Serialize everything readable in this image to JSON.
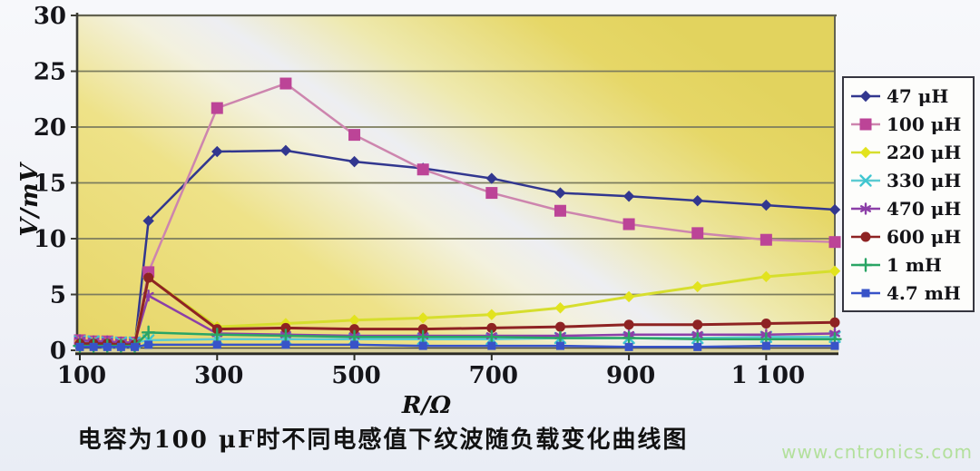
{
  "caption": "电容为100 μF时不同电感值下纹波随负载变化曲线图",
  "watermark": "www.cntronics.com",
  "colors": {
    "plot_yellow": "#e6d767",
    "plot_sheen": "#edeef2",
    "gridline": "#7d7d5e",
    "axis_dark": "#2a2a24",
    "axis_band_fill": "#d9d19e",
    "tick_text": "#15151a",
    "legend_border": "#35353f",
    "watermark_green": "#b3e09c"
  },
  "chart_data": {
    "type": "line",
    "title": "电容为100 μF时不同电感值下纹波随负载变化曲线图",
    "xlabel": "R/Ω",
    "ylabel": "V/mV",
    "xlim": [
      100,
      1200
    ],
    "ylim": [
      0,
      30
    ],
    "grid": "horizontal",
    "legend_position": "right",
    "y_ticks": [
      "0",
      "5",
      "10",
      "15",
      "20",
      "25",
      "30"
    ],
    "y_tick_values": [
      0,
      5,
      10,
      15,
      20,
      25,
      30
    ],
    "x_ticks": [
      "100",
      "300",
      "500",
      "700",
      "900",
      "1 100"
    ],
    "x_tick_values": [
      100,
      300,
      500,
      700,
      900,
      1100
    ],
    "x": [
      100,
      120,
      140,
      160,
      180,
      200,
      300,
      400,
      500,
      600,
      700,
      800,
      900,
      1000,
      1100,
      1200
    ],
    "series": [
      {
        "name": "47 μH",
        "marker": "diamond",
        "color": "#32378f",
        "line_color": "#32378f",
        "values": [
          0.5,
          0.5,
          0.4,
          0.4,
          0.4,
          11.6,
          17.8,
          17.9,
          16.9,
          16.3,
          15.4,
          14.1,
          13.8,
          13.4,
          13.0,
          12.6
        ]
      },
      {
        "name": "100 μH",
        "marker": "square",
        "color": "#bc4497",
        "line_color": "#cd85ae",
        "values": [
          0.9,
          0.8,
          0.8,
          0.7,
          0.7,
          7.0,
          21.7,
          23.9,
          19.3,
          16.2,
          14.1,
          12.5,
          11.3,
          10.5,
          9.9,
          9.7
        ]
      },
      {
        "name": "220 μH",
        "marker": "diamond",
        "color": "#e2e31e",
        "line_color": "#d6de2e",
        "values": [
          0.8,
          0.8,
          0.7,
          0.7,
          0.7,
          6.5,
          2.1,
          2.4,
          2.7,
          2.9,
          3.2,
          3.8,
          4.8,
          5.7,
          6.6,
          7.1
        ]
      },
      {
        "name": "330 μH",
        "marker": "x",
        "color": "#3fc6d0",
        "line_color": "#5ccbd2",
        "values": [
          0.8,
          0.8,
          0.7,
          0.7,
          0.7,
          0.9,
          1.0,
          1.0,
          1.0,
          1.0,
          1.0,
          1.1,
          1.1,
          1.1,
          1.2,
          1.2
        ]
      },
      {
        "name": "470 μH",
        "marker": "asterisk",
        "color": "#8c3fa8",
        "line_color": "#8c3fa8",
        "values": [
          0.9,
          0.8,
          0.8,
          0.7,
          0.7,
          4.9,
          1.5,
          1.4,
          1.3,
          1.3,
          1.3,
          1.3,
          1.4,
          1.4,
          1.4,
          1.5
        ]
      },
      {
        "name": "600 μH",
        "marker": "circle",
        "color": "#8e2323",
        "line_color": "#8e2323",
        "values": [
          0.6,
          0.6,
          0.6,
          0.5,
          0.5,
          6.5,
          1.9,
          2.0,
          1.9,
          1.9,
          2.0,
          2.1,
          2.3,
          2.3,
          2.4,
          2.5
        ]
      },
      {
        "name": "1 mH",
        "marker": "plus",
        "color": "#2aa565",
        "line_color": "#2aa565",
        "values": [
          0.4,
          0.4,
          0.4,
          0.4,
          0.4,
          1.6,
          1.4,
          1.3,
          1.2,
          1.2,
          1.2,
          1.1,
          1.1,
          1.0,
          1.0,
          1.0
        ]
      },
      {
        "name": "4.7 mH",
        "marker": "square-small",
        "color": "#3853c8",
        "line_color": "#3853c8",
        "values": [
          0.3,
          0.3,
          0.3,
          0.3,
          0.3,
          0.5,
          0.5,
          0.5,
          0.5,
          0.4,
          0.4,
          0.4,
          0.3,
          0.3,
          0.4,
          0.4
        ]
      }
    ]
  }
}
